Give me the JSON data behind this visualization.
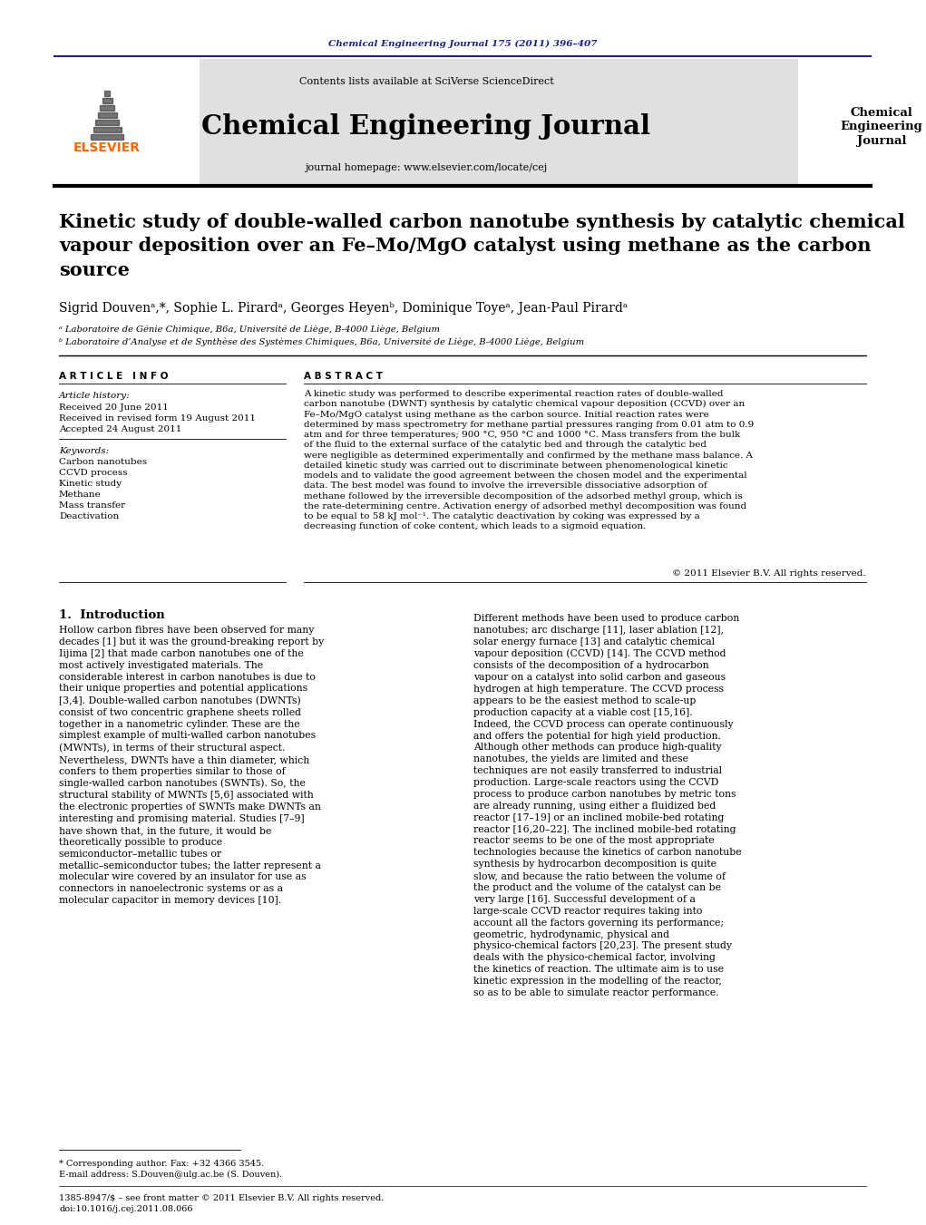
{
  "journal_ref": "Chemical Engineering Journal 175 (2011) 396–407",
  "journal_ref_color": "#1a237e",
  "contents_text": "Contents lists available at SciVerse ScienceDirect",
  "journal_name": "Chemical Engineering Journal",
  "journal_homepage_text": "journal homepage: www.elsevier.com/locate/cej",
  "journal_sidebar": "Chemical\nEngineering\nJournal",
  "title": "Kinetic study of double-walled carbon nanotube synthesis by catalytic chemical\nvapour deposition over an Fe–Mo/MgO catalyst using methane as the carbon\nsource",
  "authors": "Sigrid Douvenᵃ,*, Sophie L. Pirardᵃ, Georges Heyenᵇ, Dominique Toyeᵃ, Jean-Paul Pirardᵃ",
  "affil_a": "ᵃ Laboratoire de Génie Chimique, B6a, Université de Liège, B-4000 Liège, Belgium",
  "affil_b": "ᵇ Laboratoire d’Analyse et de Synthèse des Systèmes Chimiques, B6a, Université de Liège, B-4000 Liège, Belgium",
  "article_info_header": "A R T I C L E   I N F O",
  "article_history_header": "Article history:",
  "received": "Received 20 June 2011",
  "received_revised": "Received in revised form 19 August 2011",
  "accepted": "Accepted 24 August 2011",
  "keywords_header": "Keywords:",
  "keywords": [
    "Carbon nanotubes",
    "CCVD process",
    "Kinetic study",
    "Methane",
    "Mass transfer",
    "Deactivation"
  ],
  "abstract_header": "A B S T R A C T",
  "abstract_text": "A kinetic study was performed to describe experimental reaction rates of double-walled carbon nanotube (DWNT) synthesis by catalytic chemical vapour deposition (CCVD) over an Fe–Mo/MgO catalyst using methane as the carbon source. Initial reaction rates were determined by mass spectrometry for methane partial pressures ranging from 0.01 atm to 0.9 atm and for three temperatures; 900 °C, 950 °C and 1000 °C. Mass transfers from the bulk of the fluid to the external surface of the catalytic bed and through the catalytic bed were negligible as determined experimentally and confirmed by the methane mass balance. A detailed kinetic study was carried out to discriminate between phenomenological kinetic models and to validate the good agreement between the chosen model and the experimental data. The best model was found to involve the irreversible dissociative adsorption of methane followed by the irreversible decomposition of the adsorbed methyl group, which is the rate-determining centre. Activation energy of adsorbed methyl decomposition was found to be equal to 58 kJ mol⁻¹. The catalytic deactivation by coking was expressed by a decreasing function of coke content, which leads to a sigmoid equation.",
  "copyright": "© 2011 Elsevier B.V. All rights reserved.",
  "section1_header": "1.  Introduction",
  "intro_left": "    Hollow carbon fibres have been observed for many decades [1] but it was the ground-breaking report by Iijima [2] that made carbon nanotubes one of the most actively investigated materials. The considerable interest in carbon nanotubes is due to their unique properties and potential applications [3,4]. Double-walled carbon nanotubes (DWNTs) consist of two concentric graphene sheets rolled together in a nanometric cylinder. These are the simplest example of multi-walled carbon nanotubes (MWNTs), in terms of their structural aspect. Nevertheless, DWNTs have a thin diameter, which confers to them properties similar to those of single-walled carbon nanotubes (SWNTs). So, the structural stability of MWNTs [5,6] associated with the electronic properties of SWNTs make DWNTs an interesting and promising material. Studies [7–9] have shown that, in the future, it would be theoretically possible to produce semiconductor–metallic tubes or metallic–semiconductor tubes; the latter represent a molecular wire covered by an insulator for use as connectors in nanoelectronic systems or as a molecular capacitor in memory devices [10].",
  "intro_right": "    Different methods have been used to produce carbon nanotubes; arc discharge [11], laser ablation [12], solar energy furnace [13] and catalytic chemical vapour deposition (CCVD) [14]. The CCVD method consists of the decomposition of a hydrocarbon vapour on a catalyst into solid carbon and gaseous hydrogen at high temperature. The CCVD process appears to be the easiest method to scale-up production capacity at a viable cost [15,16]. Indeed, the CCVD process can operate continuously and offers the potential for high yield production. Although other methods can produce high-quality nanotubes, the yields are limited and these techniques are not easily transferred to industrial production. Large-scale reactors using the CCVD process to produce carbon nanotubes by metric tons are already running, using either a fluidized bed reactor [17–19] or an inclined mobile-bed rotating reactor [16,20–22]. The inclined mobile-bed rotating reactor seems to be one of the most appropriate technologies because the kinetics of carbon nanotube synthesis by hydrocarbon decomposition is quite slow, and because the ratio between the volume of the product and the volume of the catalyst can be very large [16]. Successful development of a large-scale CCVD reactor requires taking into account all the factors governing its performance; geometric, hydrodynamic, physical and physico-chemical factors [20,23]. The present study deals with the physico-chemical factor, involving the kinetics of reaction. The ultimate aim is to use kinetic expression in the modelling of the reactor, so as to be able to simulate reactor performance.",
  "footnote_star": "* Corresponding author. Fax: +32 4366 3545.",
  "footnote_email": "E-mail address: S.Douven@ulg.ac.be (S. Douven).",
  "footer_issn": "1385-8947/$ – see front matter © 2011 Elsevier B.V. All rights reserved.",
  "footer_doi": "doi:10.1016/j.cej.2011.08.066",
  "background_color": "#ffffff",
  "elsevier_color": "#ff6600",
  "dark_blue": "#1a237e",
  "link_blue": "#1565c0",
  "text_color": "#000000",
  "gray_bg": "#e0e0e0"
}
